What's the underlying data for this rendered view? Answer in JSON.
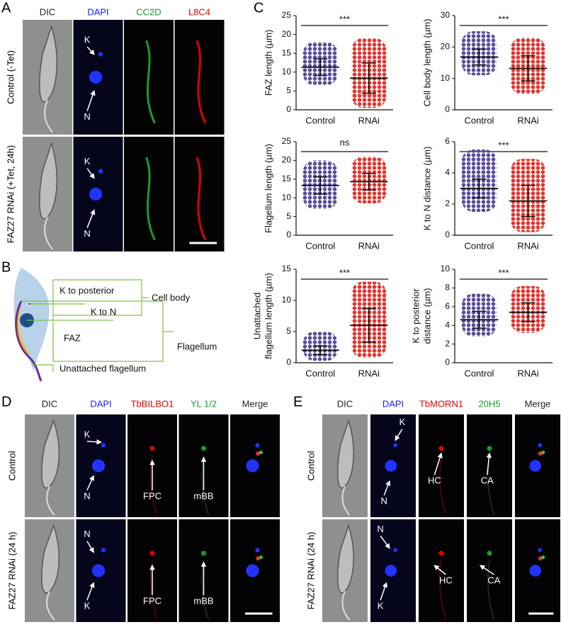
{
  "panel_a": {
    "label": "A",
    "columns": [
      "DIC",
      "DAPI",
      "CC2D",
      "L8C4"
    ],
    "rows": [
      "Control (-Tet)",
      "FAZ27 RNAi (+Tet, 24h)"
    ],
    "annotations": [
      [
        "K",
        "N"
      ],
      [
        "K",
        "N"
      ]
    ]
  },
  "panel_b": {
    "label": "B",
    "labels": [
      "K to posterior",
      "Cell body",
      "K to N",
      "FAZ",
      "Flagellum",
      "Unattached flagellum"
    ]
  },
  "panel_c": {
    "label": "C"
  },
  "chart_data": [
    {
      "type": "dot",
      "ylabel": [
        "FAZ length (µm)"
      ],
      "categories": [
        "Control",
        "RNAi"
      ],
      "significance": "***",
      "groups": [
        {
          "color": "#5b4c9c",
          "mean": 11.3,
          "sd": 2.2,
          "min": 6.5,
          "max": 18
        },
        {
          "color": "#e5332d",
          "mean": 8.4,
          "sd": 4,
          "min": 0.5,
          "max": 19
        }
      ],
      "ylim": [
        0,
        25
      ],
      "yticks": [
        0,
        5,
        10,
        15,
        20,
        25
      ]
    },
    {
      "type": "dot",
      "ylabel": [
        "Cell body length (µm)"
      ],
      "categories": [
        "Control",
        "RNAi"
      ],
      "significance": "***",
      "groups": [
        {
          "color": "#5b4c9c",
          "mean": 16.8,
          "sd": 2.5,
          "min": 11,
          "max": 25
        },
        {
          "color": "#e5332d",
          "mean": 13.2,
          "sd": 4,
          "min": 5,
          "max": 23
        }
      ],
      "ylim": [
        0,
        30
      ],
      "yticks": [
        0,
        10,
        20,
        30
      ]
    },
    {
      "type": "dot",
      "ylabel": [
        "Flagellum length (µm)"
      ],
      "categories": [
        "Control",
        "RNAi"
      ],
      "significance": "ns",
      "groups": [
        {
          "color": "#5b4c9c",
          "mean": 13.3,
          "sd": 2.3,
          "min": 7,
          "max": 20
        },
        {
          "color": "#e5332d",
          "mean": 14.3,
          "sd": 2.2,
          "min": 8.5,
          "max": 21
        }
      ],
      "ylim": [
        0,
        25
      ],
      "yticks": [
        0,
        5,
        10,
        15,
        20,
        25
      ]
    },
    {
      "type": "dot",
      "ylabel": [
        "K to N distance (µm)"
      ],
      "categories": [
        "Control",
        "RNAi"
      ],
      "significance": "***",
      "groups": [
        {
          "color": "#5b4c9c",
          "mean": 3.0,
          "sd": 0.6,
          "min": 1.5,
          "max": 5.5
        },
        {
          "color": "#e5332d",
          "mean": 2.2,
          "sd": 1,
          "min": 0.2,
          "max": 4.9
        }
      ],
      "ylim": [
        0,
        6
      ],
      "yticks": [
        0,
        2,
        4,
        6
      ]
    },
    {
      "type": "dot",
      "ylabel": [
        "Unattached",
        "flagellum length (µm)"
      ],
      "categories": [
        "Control",
        "RNAi"
      ],
      "significance": "***",
      "groups": [
        {
          "color": "#5b4c9c",
          "mean": 2.0,
          "sd": 0.7,
          "min": 0.3,
          "max": 5
        },
        {
          "color": "#e5332d",
          "mean": 6.0,
          "sd": 2.7,
          "min": 0.8,
          "max": 13
        }
      ],
      "ylim": [
        0,
        15
      ],
      "yticks": [
        0,
        5,
        10,
        15
      ]
    },
    {
      "type": "dot",
      "ylabel": [
        "K to posterior",
        "distance (µm)"
      ],
      "categories": [
        "Control",
        "RNAi"
      ],
      "significance": "***",
      "groups": [
        {
          "color": "#5b4c9c",
          "mean": 4.6,
          "sd": 0.9,
          "min": 2.8,
          "max": 7.4
        },
        {
          "color": "#e5332d",
          "mean": 5.4,
          "sd": 1,
          "min": 3.2,
          "max": 8.2
        }
      ],
      "ylim": [
        0,
        10
      ],
      "yticks": [
        0,
        2,
        4,
        6,
        8,
        10
      ]
    }
  ],
  "panel_d": {
    "label": "D",
    "columns": [
      "DIC",
      "DAPI",
      "TbBILBO1",
      "YL 1/2",
      "Merge"
    ],
    "rows": [
      "Control",
      "FAZ27 RNAi (24 h)"
    ],
    "annotations": [
      [
        "K",
        "N",
        "FPC",
        "mBB"
      ],
      [
        "N",
        "K",
        "FPC",
        "mBB"
      ]
    ]
  },
  "panel_e": {
    "label": "E",
    "columns": [
      "DIC",
      "DAPI",
      "TbMORN1",
      "20H5",
      "Merge"
    ],
    "rows": [
      "Control",
      "FAZ27 RNAi (24 h)"
    ],
    "annotations": [
      [
        "K",
        "N",
        "HC",
        "CA"
      ],
      [
        "N",
        "K",
        "HC",
        "CA"
      ]
    ]
  }
}
